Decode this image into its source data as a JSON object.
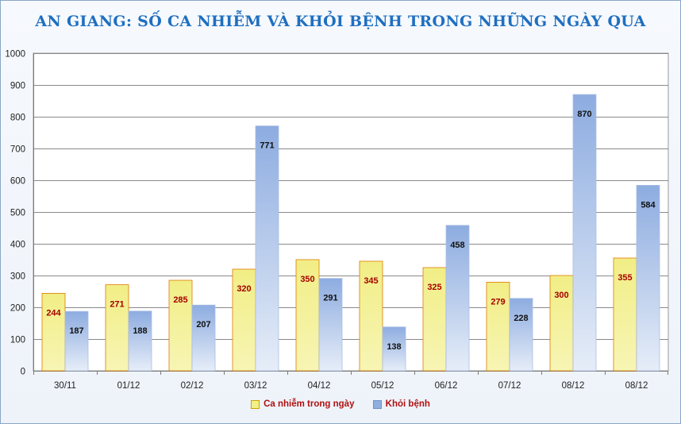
{
  "chart_data": {
    "type": "bar",
    "title": "AN GIANG: SỐ CA NHIỄM VÀ KHỎI BỆNH TRONG NHỮNG NGÀY QUA",
    "categories": [
      "30/11",
      "01/12",
      "02/12",
      "03/12",
      "04/12",
      "05/12",
      "06/12",
      "07/12",
      "08/12",
      "08/12"
    ],
    "series": [
      {
        "name": "Ca nhiễm trong ngày",
        "values": [
          244,
          271,
          285,
          320,
          350,
          345,
          325,
          279,
          300,
          355
        ],
        "color": "#f3f08a",
        "label_color": "#a80000"
      },
      {
        "name": "Khỏi bệnh",
        "values": [
          187,
          188,
          207,
          771,
          291,
          138,
          458,
          228,
          870,
          584
        ],
        "color": "#8eafe0",
        "label_color": "#111111"
      }
    ],
    "ylim": [
      0,
      1000
    ],
    "yticks": [
      0,
      100,
      200,
      300,
      400,
      500,
      600,
      700,
      800,
      900,
      1000
    ],
    "grid": true,
    "legend_position": "bottom"
  }
}
